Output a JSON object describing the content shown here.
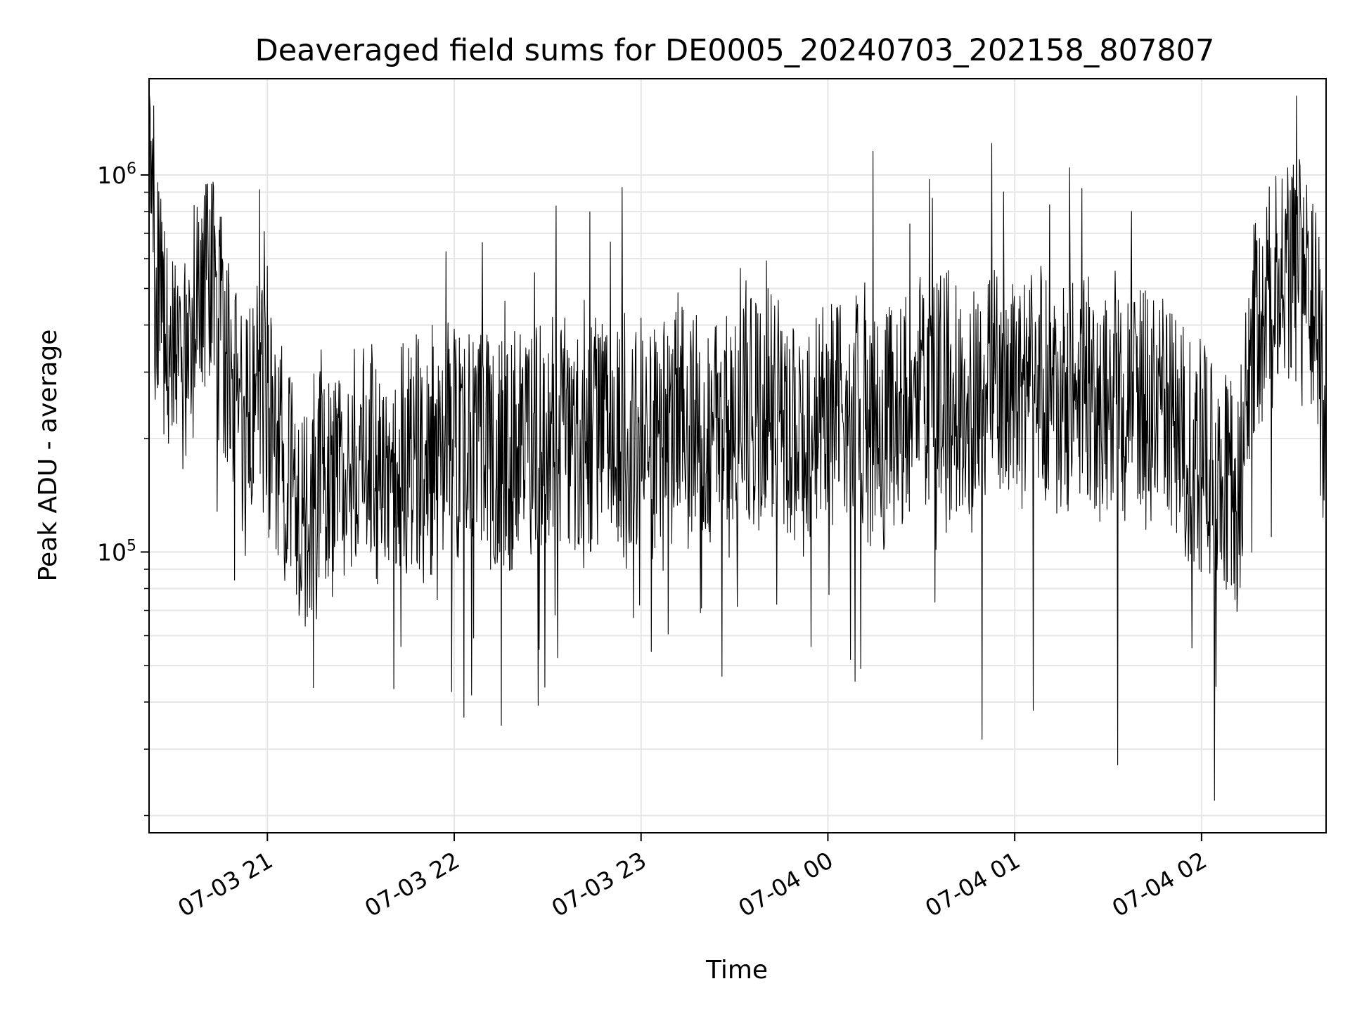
{
  "chart_data": {
    "type": "line",
    "title": "Deaveraged field sums for DE0005_20240703_202158_807807",
    "xlabel": "Time",
    "ylabel": "Peak ADU - average",
    "yscale": "log",
    "ylim": [
      18000,
      1800000
    ],
    "xlim": [
      "2024-07-03 20:22",
      "2024-07-04 02:40"
    ],
    "grid": true,
    "line_color": "#000000",
    "x_ticks": [
      {
        "value": "2024-07-03 21:00",
        "label": "07-03 21"
      },
      {
        "value": "2024-07-03 22:00",
        "label": "07-03 22"
      },
      {
        "value": "2024-07-03 23:00",
        "label": "07-03 23"
      },
      {
        "value": "2024-07-04 00:00",
        "label": "07-04 00"
      },
      {
        "value": "2024-07-04 01:00",
        "label": "07-04 01"
      },
      {
        "value": "2024-07-04 02:00",
        "label": "07-04 02"
      }
    ],
    "y_ticks": [
      {
        "value": 100000,
        "base": "10",
        "exp": "5"
      },
      {
        "value": 1000000,
        "base": "10",
        "exp": "6"
      }
    ],
    "x": [
      "2024-07-03 20:22",
      "2024-07-03 20:27",
      "2024-07-03 20:32",
      "2024-07-03 20:37",
      "2024-07-03 20:42",
      "2024-07-03 20:47",
      "2024-07-03 20:52",
      "2024-07-03 20:57",
      "2024-07-03 21:02",
      "2024-07-03 21:07",
      "2024-07-03 21:12",
      "2024-07-03 21:17",
      "2024-07-03 21:22",
      "2024-07-03 21:27",
      "2024-07-03 21:32",
      "2024-07-03 21:37",
      "2024-07-03 21:42",
      "2024-07-03 21:47",
      "2024-07-03 21:52",
      "2024-07-03 21:57",
      "2024-07-03 22:02",
      "2024-07-03 22:07",
      "2024-07-03 22:12",
      "2024-07-03 22:17",
      "2024-07-03 22:22",
      "2024-07-03 22:27",
      "2024-07-03 22:32",
      "2024-07-03 22:37",
      "2024-07-03 22:42",
      "2024-07-03 22:47",
      "2024-07-03 22:52",
      "2024-07-03 22:57",
      "2024-07-03 23:02",
      "2024-07-03 23:07",
      "2024-07-03 23:12",
      "2024-07-03 23:17",
      "2024-07-03 23:22",
      "2024-07-03 23:27",
      "2024-07-03 23:32",
      "2024-07-03 23:37",
      "2024-07-03 23:42",
      "2024-07-03 23:47",
      "2024-07-03 23:52",
      "2024-07-03 23:57",
      "2024-07-04 00:02",
      "2024-07-04 00:07",
      "2024-07-04 00:12",
      "2024-07-04 00:17",
      "2024-07-04 00:22",
      "2024-07-04 00:27",
      "2024-07-04 00:32",
      "2024-07-04 00:37",
      "2024-07-04 00:42",
      "2024-07-04 00:47",
      "2024-07-04 00:52",
      "2024-07-04 00:57",
      "2024-07-04 01:02",
      "2024-07-04 01:07",
      "2024-07-04 01:12",
      "2024-07-04 01:17",
      "2024-07-04 01:22",
      "2024-07-04 01:27",
      "2024-07-04 01:32",
      "2024-07-04 01:37",
      "2024-07-04 01:42",
      "2024-07-04 01:47",
      "2024-07-04 01:52",
      "2024-07-04 01:57",
      "2024-07-04 02:02",
      "2024-07-04 02:07",
      "2024-07-04 02:12",
      "2024-07-04 02:17",
      "2024-07-04 02:22",
      "2024-07-04 02:27",
      "2024-07-04 02:32",
      "2024-07-04 02:37",
      "2024-07-04 02:40"
    ],
    "series": [
      {
        "values": [
          900000,
          350000,
          280000,
          420000,
          500000,
          320000,
          220000,
          260000,
          200000,
          160000,
          120000,
          170000,
          140000,
          180000,
          200000,
          150000,
          170000,
          190000,
          160000,
          210000,
          180000,
          200000,
          190000,
          170000,
          210000,
          190000,
          230000,
          200000,
          180000,
          220000,
          190000,
          210000,
          200000,
          180000,
          240000,
          230000,
          190000,
          200000,
          280000,
          230000,
          250000,
          210000,
          190000,
          240000,
          230000,
          250000,
          210000,
          200000,
          230000,
          260000,
          270000,
          300000,
          240000,
          260000,
          280000,
          270000,
          250000,
          300000,
          230000,
          260000,
          290000,
          240000,
          280000,
          220000,
          250000,
          230000,
          210000,
          190000,
          170000,
          150000,
          140000,
          370000,
          450000,
          600000,
          550000,
          400000,
          180000
        ]
      }
    ]
  }
}
